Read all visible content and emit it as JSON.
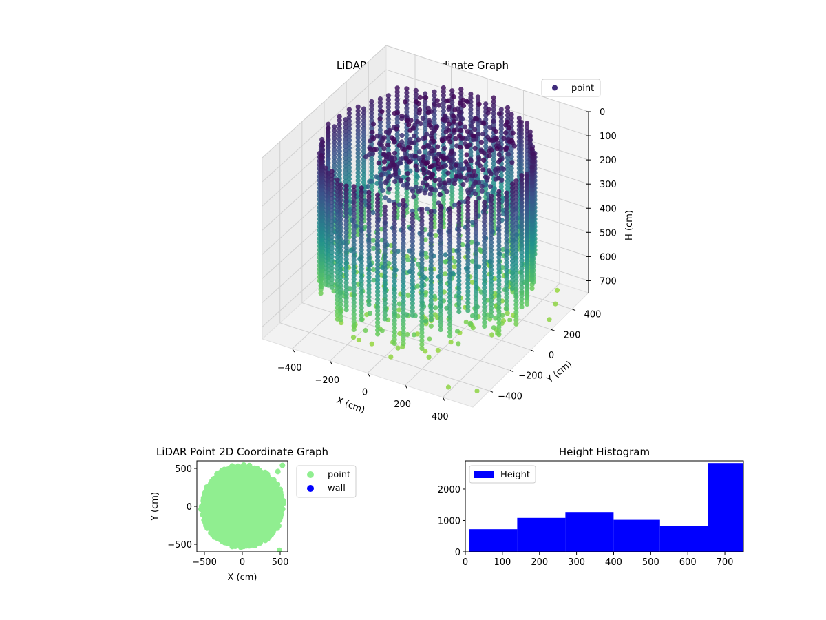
{
  "chart_data": [
    {
      "type": "scatter3d",
      "title": "LiDAR Point 3D Coordinate Graph",
      "xlabel": "X (cm)",
      "ylabel": "Y (cm)",
      "zlabel": "H (cm)",
      "x_ticks": [
        "−400",
        "−200",
        "0",
        "200",
        "400"
      ],
      "y_ticks": [
        "−400",
        "−200",
        "0",
        "200",
        "400"
      ],
      "z_ticks": [
        "0",
        "100",
        "200",
        "300",
        "400",
        "500",
        "600",
        "700"
      ],
      "xlim": [
        -560,
        560
      ],
      "ylim": [
        -560,
        560
      ],
      "zlim": [
        0,
        750
      ],
      "z_inverted": true,
      "legend": {
        "position": "top-right",
        "entries": [
          {
            "label": "point",
            "color": "#3f2b7c"
          }
        ]
      },
      "colormap": [
        "#440154",
        "#3b528b",
        "#21918c",
        "#5ec962",
        "#b5de2b"
      ],
      "grid": true,
      "wall_radius_cm": 500,
      "stray_points": [
        {
          "x": 450,
          "y": 450,
          "z": 720
        },
        {
          "x": 520,
          "y": 310,
          "z": 700
        },
        {
          "x": 560,
          "y": 180,
          "z": 700
        },
        {
          "x": 430,
          "y": -560,
          "z": 700
        },
        {
          "x": 560,
          "y": -520,
          "z": 700
        }
      ]
    },
    {
      "type": "scatter",
      "title": "LiDAR Point 2D Coordinate Graph",
      "xlabel": "X (cm)",
      "ylabel": "Y (cm)",
      "xlim": [
        -600,
        600
      ],
      "ylim": [
        -600,
        600
      ],
      "x_ticks": [
        "−500",
        "0",
        "500"
      ],
      "y_ticks": [
        "500",
        "0",
        "−500"
      ],
      "series": [
        {
          "name": "point",
          "color": "#90ee90",
          "radius_cm": 520
        },
        {
          "name": "wall",
          "color": "#0000ff"
        }
      ],
      "outliers": [
        {
          "x": 530,
          "y": 540
        },
        {
          "x": 470,
          "y": 460
        },
        {
          "x": 490,
          "y": -580
        }
      ],
      "legend": {
        "position": "outside-right"
      }
    },
    {
      "type": "histogram",
      "title": "Height Histogram",
      "xlim": [
        0,
        750
      ],
      "ylim": [
        0,
        2900
      ],
      "x_ticks": [
        "0",
        "100",
        "200",
        "300",
        "400",
        "500",
        "600",
        "700"
      ],
      "y_ticks": [
        "0",
        "1000",
        "2000"
      ],
      "bins": [
        {
          "from": 10,
          "to": 140,
          "count": 720
        },
        {
          "from": 140,
          "to": 270,
          "count": 1080
        },
        {
          "from": 270,
          "to": 400,
          "count": 1270
        },
        {
          "from": 400,
          "to": 525,
          "count": 1020
        },
        {
          "from": 525,
          "to": 655,
          "count": 820
        },
        {
          "from": 655,
          "to": 750,
          "count": 2830
        }
      ],
      "color": "#0000ff",
      "legend": {
        "position": "top-left",
        "entries": [
          {
            "label": "Height",
            "color": "#0000ff"
          }
        ]
      }
    }
  ]
}
